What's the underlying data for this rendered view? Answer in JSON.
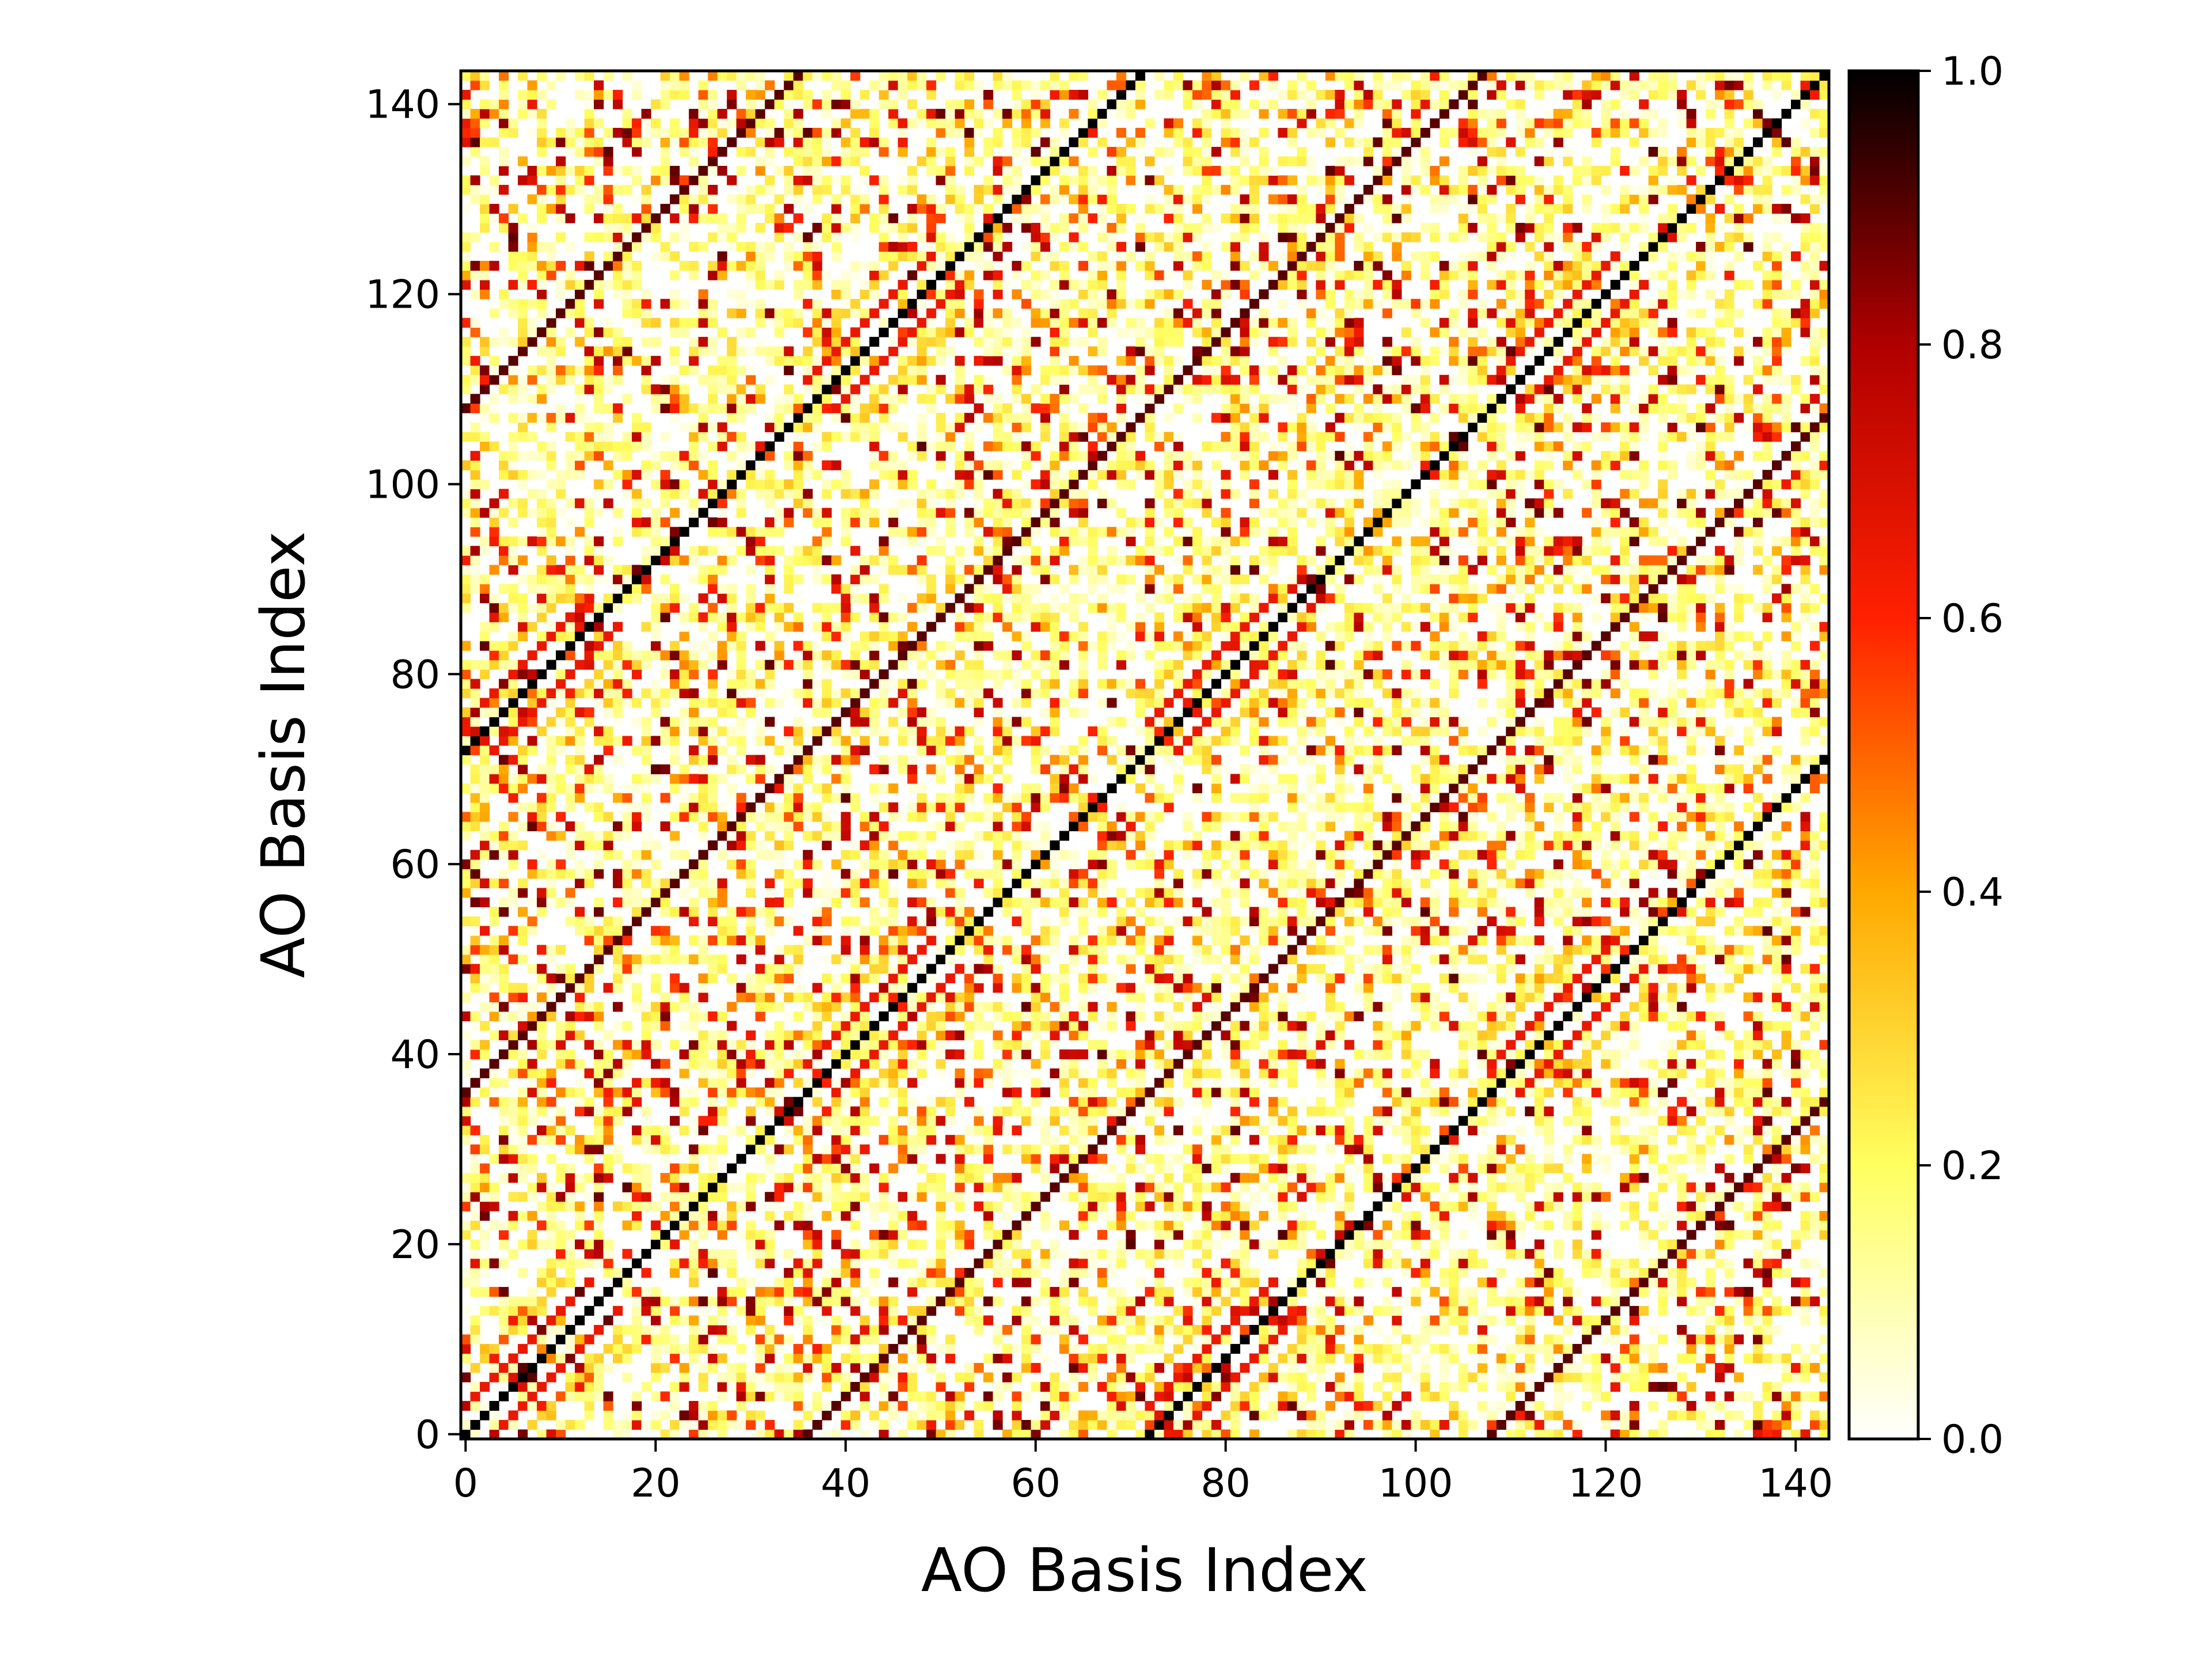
{
  "chart_data": {
    "type": "heatmap",
    "title": "",
    "xlabel": "AO Basis Index",
    "ylabel": "AO Basis Index",
    "n": 144,
    "xlim": [
      -0.5,
      143.5
    ],
    "ylim": [
      -0.5,
      143.5
    ],
    "origin": "lower",
    "x_ticks": [
      0,
      20,
      40,
      60,
      80,
      100,
      120,
      140
    ],
    "y_ticks": [
      0,
      20,
      40,
      60,
      80,
      100,
      120,
      140
    ],
    "colormap": "hot_r",
    "vmin": 0.0,
    "vmax": 1.0,
    "colorbar_ticks": [
      "0.0",
      "0.2",
      "0.4",
      "0.6",
      "0.8",
      "1.0"
    ],
    "colorbar_stops": [
      "#ffffff",
      "#ffff60",
      "#ffa800",
      "#ff2000",
      "#b00000",
      "#000000"
    ],
    "block_size": 72,
    "subblock_size": 36,
    "diagonal_value": 1.0,
    "offdiag_block_shifts": [
      0,
      72,
      -72
    ],
    "notes_pattern": {
      "diagonal_lines_value": 1.0,
      "sideband_offsets": [
        3,
        -3,
        6,
        -6
      ],
      "sideband_values": [
        0.65,
        0.65,
        0.3,
        0.3
      ],
      "sideband_region": "atom-centered p/d shells near each 36-block start"
    }
  }
}
